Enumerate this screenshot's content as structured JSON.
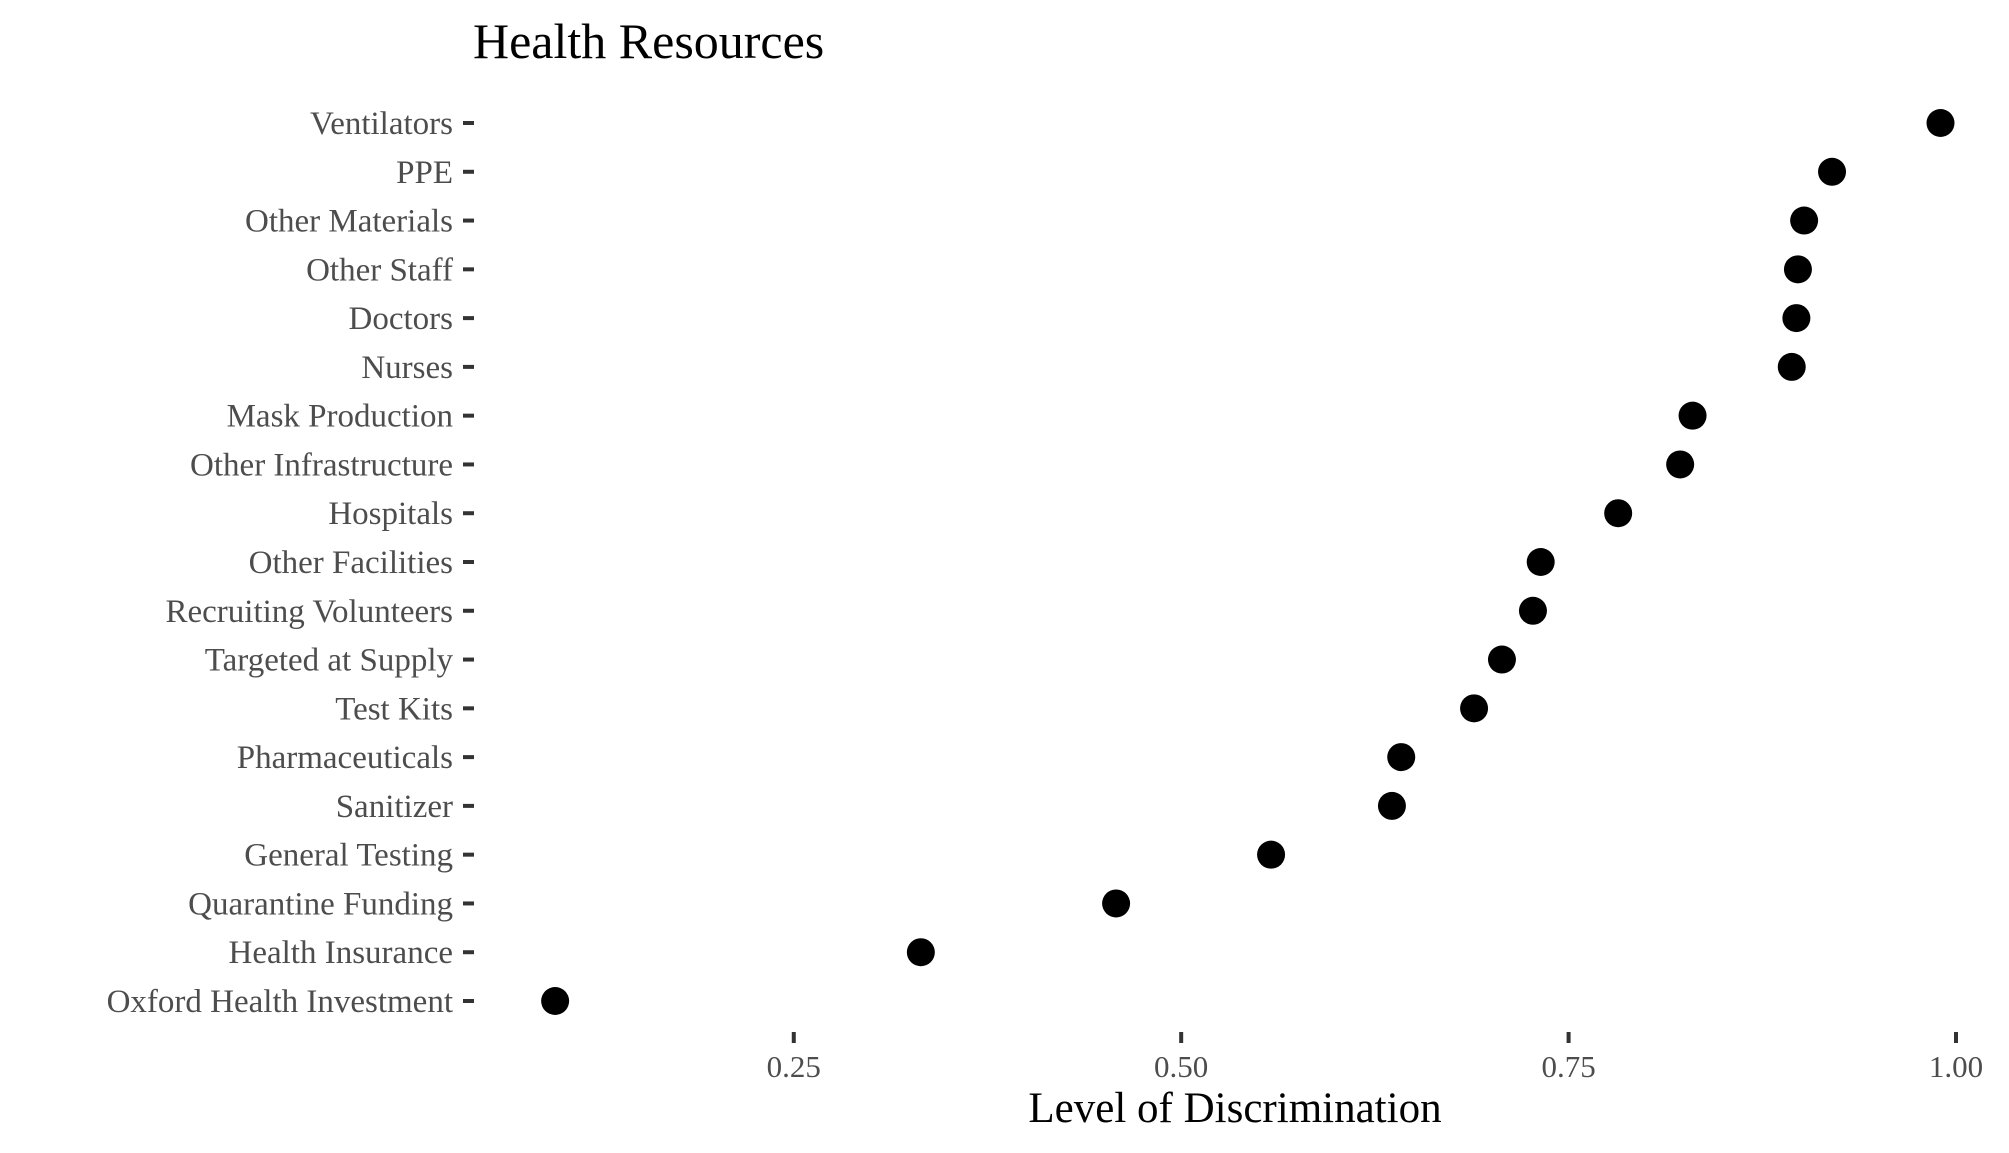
{
  "chart_data": {
    "type": "scatter",
    "title": "Health Resources",
    "xlabel": "Level of Discrimination",
    "ylabel": "",
    "xlim": [
      0.043,
      1.0
    ],
    "xticks": [
      0.25,
      0.5,
      0.75,
      1.0
    ],
    "xtick_labels": [
      "0.25",
      "0.50",
      "0.75",
      "1.00"
    ],
    "grid": false,
    "point_color": "#000000",
    "categories": [
      "Ventilators",
      "PPE",
      "Other Materials",
      "Other Staff",
      "Doctors",
      "Nurses",
      "Mask Production",
      "Other Infrastructure",
      "Hospitals",
      "Other Facilities",
      "Recruiting Volunteers",
      "Targeted at Supply",
      "Test Kits",
      "Pharmaceuticals",
      "Sanitizer",
      "General Testing",
      "Quarantine Funding",
      "Health Insurance",
      "Oxford Health Investment"
    ],
    "values": [
      0.99,
      0.92,
      0.902,
      0.898,
      0.897,
      0.894,
      0.83,
      0.822,
      0.782,
      0.732,
      0.727,
      0.707,
      0.689,
      0.642,
      0.636,
      0.558,
      0.458,
      0.332,
      0.096
    ]
  }
}
